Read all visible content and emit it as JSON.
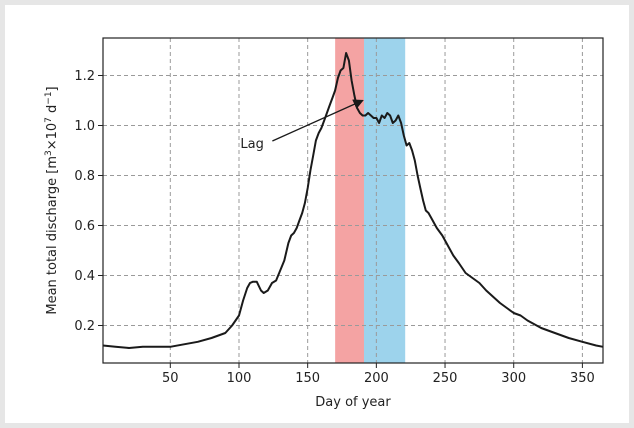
{
  "chart_data": {
    "type": "line",
    "xlabel": "Day of year",
    "ylabel_parts": {
      "base": "Mean total discharge [m",
      "sup1": "3",
      "mid": "×10",
      "sup2": "7",
      "unit": " d",
      "sup3": "−1",
      "close": "]"
    },
    "xlim": [
      1,
      365
    ],
    "ylim": [
      0.05,
      1.35
    ],
    "xticks": [
      50,
      100,
      150,
      200,
      250,
      300,
      350
    ],
    "yticks": [
      0.2,
      0.4,
      0.6,
      0.8,
      1.0,
      1.2
    ],
    "grid": true,
    "shaded_regions": [
      {
        "x0": 170,
        "x1": 191,
        "color": "#f4a3a3"
      },
      {
        "x0": 191,
        "x1": 221,
        "color": "#9dd3ec"
      }
    ],
    "annotation": {
      "text": "Lag",
      "text_x": 101,
      "text_y": 0.91,
      "arrow_x": 190,
      "arrow_y": 1.1
    },
    "series": [
      {
        "color": "#1a1a1a",
        "x": [
          1,
          10,
          20,
          30,
          40,
          50,
          60,
          70,
          80,
          90,
          95,
          100,
          103,
          106,
          108,
          110,
          113,
          116,
          118,
          121,
          124,
          127,
          130,
          133,
          136,
          138,
          140,
          142,
          144,
          146,
          148,
          150,
          152,
          154,
          156,
          158,
          160,
          162,
          164,
          166,
          168,
          170,
          172,
          174,
          176,
          178,
          180,
          182,
          184,
          186,
          188,
          190,
          192,
          194,
          196,
          198,
          200,
          202,
          204,
          206,
          208,
          210,
          212,
          214,
          216,
          218,
          220,
          222,
          224,
          226,
          228,
          230,
          232,
          234,
          236,
          238,
          240,
          244,
          248,
          252,
          256,
          260,
          265,
          270,
          275,
          280,
          290,
          300,
          305,
          310,
          320,
          330,
          340,
          350,
          360,
          365
        ],
        "y": [
          0.12,
          0.115,
          0.11,
          0.115,
          0.115,
          0.115,
          0.125,
          0.135,
          0.15,
          0.17,
          0.2,
          0.24,
          0.3,
          0.35,
          0.37,
          0.375,
          0.375,
          0.34,
          0.33,
          0.34,
          0.37,
          0.38,
          0.42,
          0.46,
          0.53,
          0.56,
          0.57,
          0.59,
          0.62,
          0.65,
          0.69,
          0.75,
          0.82,
          0.88,
          0.94,
          0.97,
          0.99,
          1.02,
          1.05,
          1.08,
          1.11,
          1.14,
          1.19,
          1.22,
          1.23,
          1.29,
          1.26,
          1.18,
          1.12,
          1.07,
          1.05,
          1.04,
          1.04,
          1.05,
          1.04,
          1.03,
          1.03,
          1.01,
          1.04,
          1.03,
          1.05,
          1.04,
          1.01,
          1.02,
          1.04,
          1.01,
          0.96,
          0.92,
          0.93,
          0.9,
          0.86,
          0.8,
          0.75,
          0.7,
          0.66,
          0.65,
          0.63,
          0.59,
          0.56,
          0.52,
          0.48,
          0.45,
          0.41,
          0.39,
          0.37,
          0.34,
          0.29,
          0.25,
          0.24,
          0.22,
          0.19,
          0.17,
          0.15,
          0.135,
          0.12,
          0.115
        ]
      }
    ]
  }
}
